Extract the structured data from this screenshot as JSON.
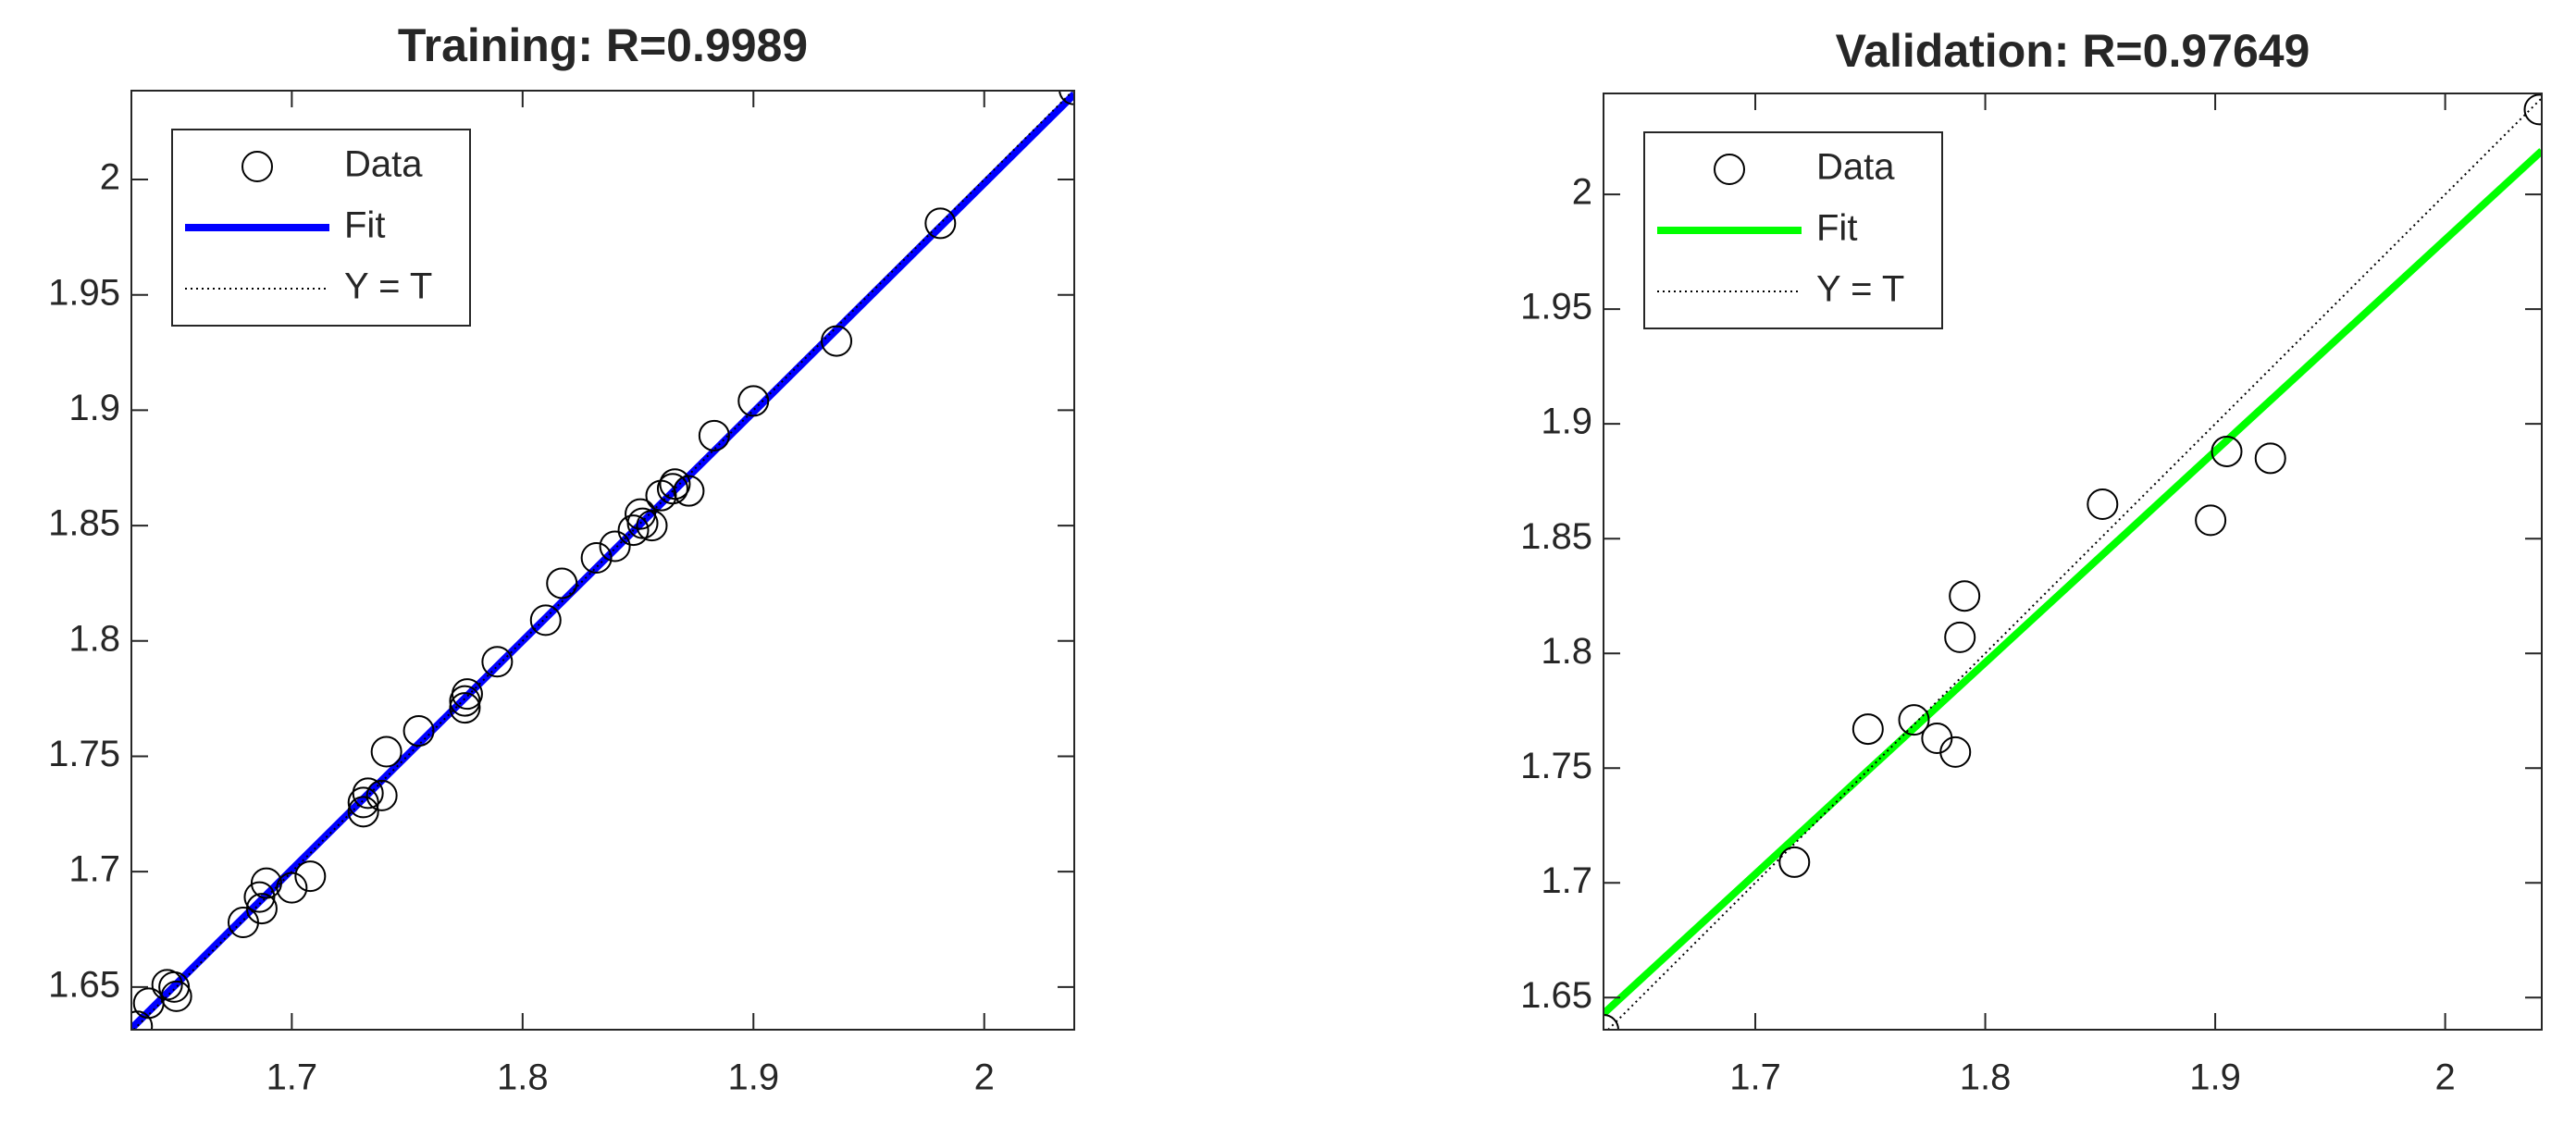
{
  "chart_data": [
    {
      "type": "scatter",
      "title": "Training: R=0.9989",
      "xlim": [
        1.6305,
        2.039
      ],
      "ylim": [
        1.6315,
        2.0385
      ],
      "xticks": [
        1.7,
        1.8,
        1.9,
        2
      ],
      "yticks": [
        1.65,
        1.7,
        1.75,
        1.8,
        1.85,
        1.9,
        1.95,
        2
      ],
      "legend": "upper left",
      "series": [
        {
          "name": "Data",
          "style": "marker",
          "color": "#000000",
          "x": [
            1.633,
            1.638,
            1.646,
            1.65,
            1.649,
            1.679,
            1.686,
            1.687,
            1.689,
            1.7,
            1.708,
            1.731,
            1.731,
            1.733,
            1.739,
            1.741,
            1.755,
            1.775,
            1.775,
            1.776,
            1.789,
            1.81,
            1.817,
            1.832,
            1.84,
            1.848,
            1.851,
            1.852,
            1.856,
            1.86,
            1.865,
            1.866,
            1.872,
            1.883,
            1.9,
            1.936,
            1.981,
            2.039
          ],
          "values": [
            1.633,
            1.643,
            1.651,
            1.646,
            1.65,
            1.678,
            1.689,
            1.684,
            1.695,
            1.693,
            1.698,
            1.73,
            1.726,
            1.734,
            1.733,
            1.752,
            1.761,
            1.774,
            1.771,
            1.777,
            1.791,
            1.809,
            1.825,
            1.836,
            1.841,
            1.848,
            1.855,
            1.851,
            1.85,
            1.863,
            1.866,
            1.868,
            1.865,
            1.889,
            1.904,
            1.93,
            1.981,
            2.039
          ]
        },
        {
          "name": "Fit",
          "style": "line",
          "color": "#0000ff",
          "x": [
            1.6305,
            2.039
          ],
          "values": [
            1.632,
            2.037
          ]
        },
        {
          "name": "Y = T",
          "style": "dotted",
          "color": "#000000",
          "x": [
            1.6315,
            2.0385
          ],
          "values": [
            1.6315,
            2.0385
          ]
        }
      ]
    },
    {
      "type": "scatter",
      "title": "Validation: R=0.97649",
      "xlim": [
        1.634,
        2.042
      ],
      "ylim": [
        1.636,
        2.044
      ],
      "xticks": [
        1.7,
        1.8,
        1.9,
        2
      ],
      "yticks": [
        1.65,
        1.7,
        1.75,
        1.8,
        1.85,
        1.9,
        1.95,
        2
      ],
      "legend": "upper left",
      "series": [
        {
          "name": "Data",
          "style": "marker",
          "color": "#000000",
          "x": [
            1.634,
            1.717,
            1.749,
            1.769,
            1.779,
            1.787,
            1.789,
            1.791,
            1.851,
            1.898,
            1.905,
            1.924,
            2.041
          ],
          "values": [
            1.636,
            1.709,
            1.767,
            1.771,
            1.763,
            1.757,
            1.807,
            1.825,
            1.865,
            1.858,
            1.888,
            1.885,
            2.037
          ]
        },
        {
          "name": "Fit",
          "style": "line",
          "color": "#00ff00",
          "x": [
            1.634,
            2.042
          ],
          "values": [
            1.643,
            2.019
          ]
        },
        {
          "name": "Y = T",
          "style": "dotted",
          "color": "#000000",
          "x": [
            1.636,
            2.042
          ],
          "values": [
            1.636,
            2.042
          ]
        }
      ]
    }
  ]
}
